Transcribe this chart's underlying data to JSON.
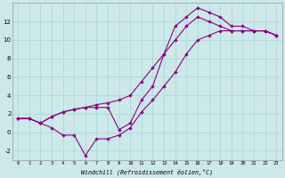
{
  "xlabel": "Windchill (Refroidissement éolien,°C)",
  "bg_color": "#cce8e8",
  "line_color": "#880088",
  "marker": "D",
  "marker_size": 2.2,
  "line_width": 0.8,
  "xlim": [
    -0.5,
    23.5
  ],
  "ylim": [
    -3,
    14
  ],
  "xticks": [
    0,
    1,
    2,
    3,
    4,
    5,
    6,
    7,
    8,
    9,
    10,
    11,
    12,
    13,
    14,
    15,
    16,
    17,
    18,
    19,
    20,
    21,
    22,
    23
  ],
  "yticks": [
    -2,
    0,
    2,
    4,
    6,
    8,
    10,
    12
  ],
  "grid_color": "#aad4d4",
  "series1_x": [
    0,
    1,
    2,
    3,
    4,
    5,
    6,
    7,
    8,
    9,
    10,
    11,
    12,
    13,
    14,
    15,
    16,
    17,
    18,
    19,
    20,
    21,
    22,
    23
  ],
  "series1_y": [
    1.5,
    1.5,
    1.0,
    0.5,
    -0.3,
    -0.3,
    -2.5,
    -0.7,
    -0.7,
    -0.3,
    0.5,
    2.2,
    3.5,
    5.0,
    6.5,
    8.5,
    10.0,
    10.5,
    11.0,
    11.0,
    11.0,
    11.0,
    11.0,
    10.5
  ],
  "series2_x": [
    0,
    1,
    2,
    3,
    4,
    5,
    6,
    7,
    8,
    9,
    10,
    11,
    12,
    13,
    14,
    15,
    16,
    17,
    18,
    19,
    20,
    21,
    22,
    23
  ],
  "series2_y": [
    1.5,
    1.5,
    1.0,
    1.7,
    2.2,
    2.5,
    2.7,
    3.0,
    3.2,
    3.5,
    4.0,
    5.5,
    7.0,
    8.5,
    10.0,
    11.5,
    12.5,
    12.0,
    11.5,
    11.0,
    11.0,
    11.0,
    11.0,
    10.5
  ],
  "series3_x": [
    0,
    1,
    2,
    3,
    4,
    5,
    6,
    7,
    8,
    9,
    10,
    11,
    12,
    13,
    14,
    15,
    16,
    17,
    18,
    19,
    20,
    21,
    22,
    23
  ],
  "series3_y": [
    1.5,
    1.5,
    1.0,
    1.7,
    2.2,
    2.5,
    2.7,
    2.7,
    2.7,
    0.3,
    1.0,
    3.5,
    5.0,
    8.5,
    11.5,
    12.5,
    13.5,
    13.0,
    12.5,
    11.5,
    11.5,
    11.0,
    11.0,
    10.5
  ]
}
